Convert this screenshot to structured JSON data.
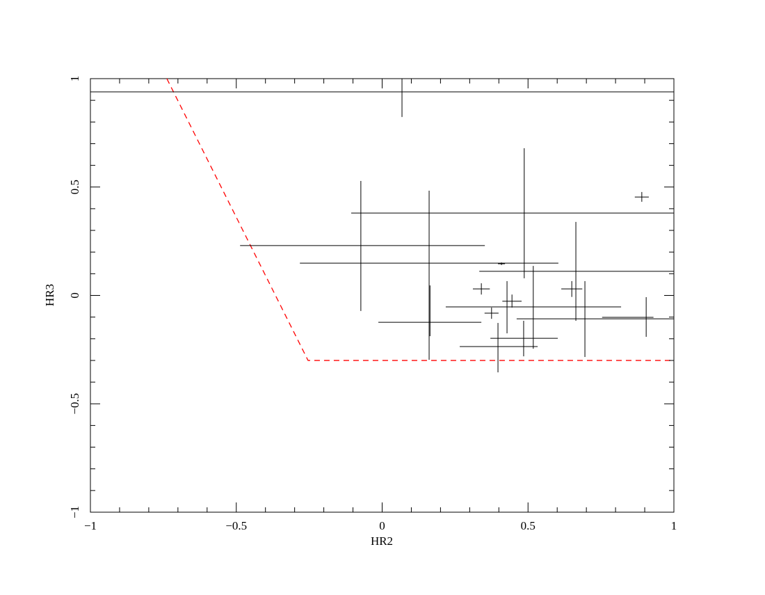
{
  "chart_data": {
    "type": "scatter",
    "xlabel": "HR2",
    "ylabel": "HR3",
    "xlim": [
      -1,
      1
    ],
    "ylim": [
      -1,
      1
    ],
    "xticks": [
      {
        "value": -1,
        "label": "−1"
      },
      {
        "value": -0.5,
        "label": "−0.5"
      },
      0,
      0.5,
      1
    ],
    "yticks": [
      {
        "value": -1,
        "label": "−1"
      },
      {
        "value": -0.5,
        "label": "−0.5"
      },
      0,
      0.5,
      1
    ],
    "xminorticks": [
      -0.9,
      -0.8,
      -0.7,
      -0.6,
      -0.4,
      -0.3,
      -0.2,
      -0.1,
      0.1,
      0.2,
      0.3,
      0.4,
      0.6,
      0.7,
      0.8,
      0.9
    ],
    "yminorticks": [
      -0.9,
      -0.8,
      -0.7,
      -0.6,
      -0.4,
      -0.3,
      -0.2,
      -0.1,
      0.1,
      0.2,
      0.3,
      0.4,
      0.6,
      0.7,
      0.8,
      0.9
    ],
    "color": "#000000",
    "points": {
      "x": [
        0.068,
        -0.073,
        0.487,
        0.161,
        0.409,
        0.664,
        0.34,
        0.65,
        0.445,
        0.428,
        0.518,
        0.695,
        0.164,
        0.375,
        0.905,
        0.89,
        0.397,
        0.485
      ],
      "y": [
        0.939,
        0.23,
        0.38,
        0.149,
        0.146,
        0.111,
        0.03,
        0.03,
        -0.027,
        -0.053,
        -0.053,
        -0.108,
        -0.124,
        -0.082,
        -0.101,
        0.454,
        -0.198,
        -0.236
      ],
      "x_low": [
        -1.0,
        -0.487,
        -0.106,
        -0.282,
        0.397,
        0.333,
        0.311,
        0.614,
        0.412,
        0.288,
        0.218,
        0.461,
        -0.013,
        0.351,
        0.754,
        0.866,
        0.371,
        0.266
      ],
      "x_high": [
        1.0,
        0.352,
        1.0,
        0.604,
        0.421,
        1.0,
        0.369,
        0.686,
        0.478,
        0.564,
        0.819,
        1.0,
        0.34,
        0.399,
        0.93,
        0.914,
        0.602,
        0.533
      ],
      "y_low": [
        0.823,
        -0.072,
        0.079,
        -0.297,
        0.14,
        -0.117,
        0.004,
        -0.007,
        -0.056,
        -0.175,
        -0.246,
        -0.284,
        -0.188,
        -0.108,
        -0.191,
        0.432,
        -0.355,
        -0.281
      ],
      "y_high": [
        1.0,
        0.528,
        0.679,
        0.483,
        0.152,
        0.339,
        0.056,
        0.066,
        0.004,
        0.066,
        0.136,
        0.066,
        0.046,
        -0.056,
        -0.008,
        0.477,
        -0.127,
        -0.117
      ]
    },
    "boundary": {
      "x": [
        -0.738,
        -0.254,
        1.0
      ],
      "y": [
        1.0,
        -0.3,
        -0.3
      ],
      "color": "#ff0000"
    }
  }
}
